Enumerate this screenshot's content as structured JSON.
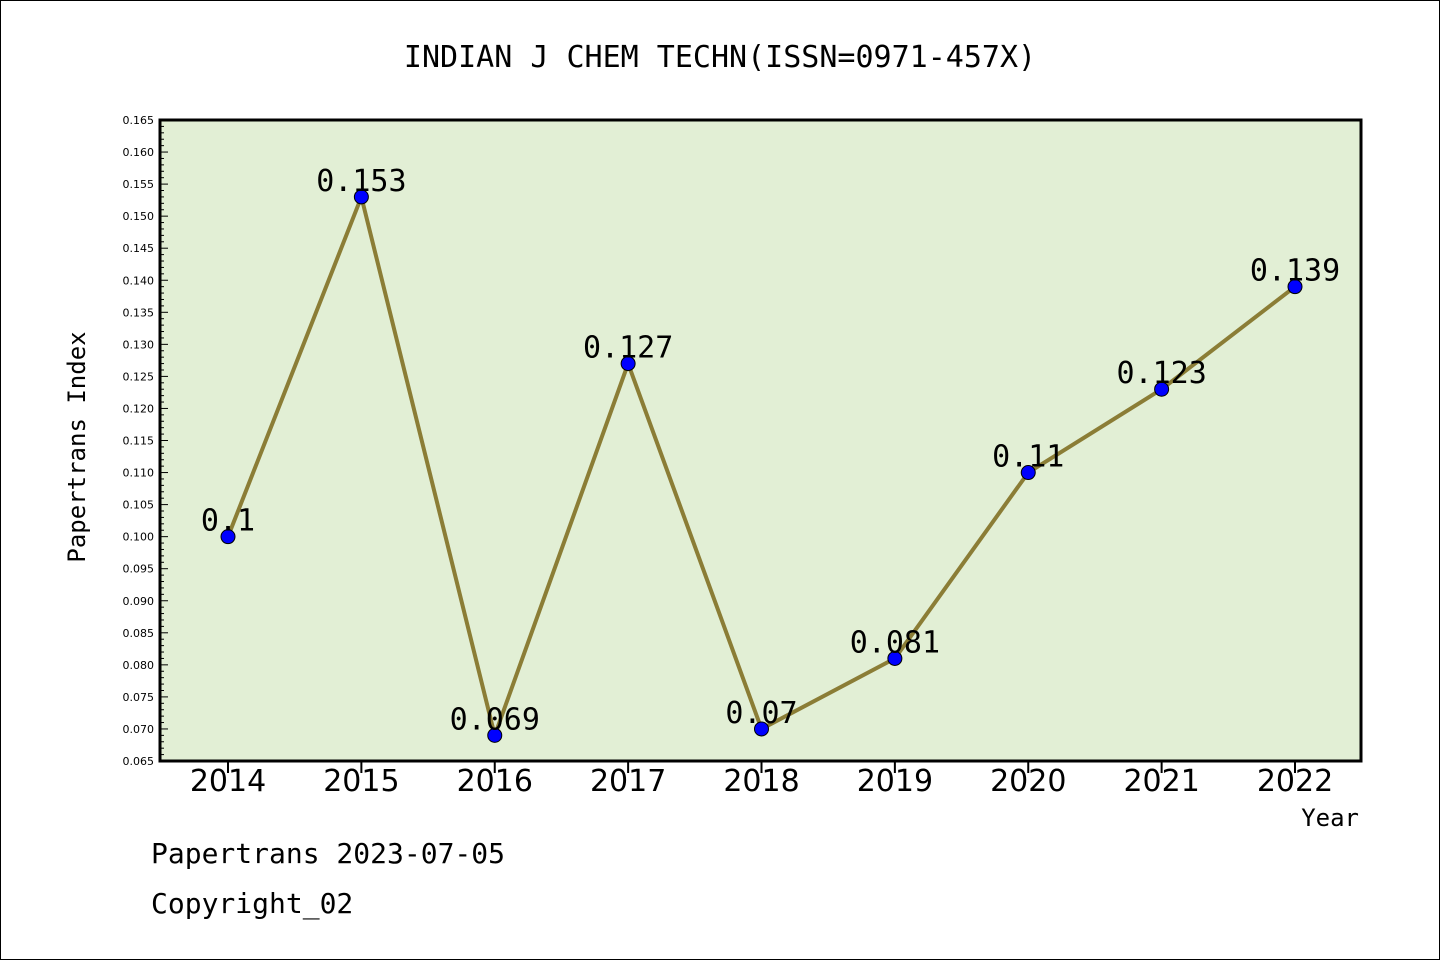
{
  "chart_data": {
    "type": "line",
    "title": "INDIAN J CHEM TECHN(ISSN=0971-457X)",
    "xlabel": "Year",
    "ylabel": "Papertrans Index",
    "categories": [
      "2014",
      "2015",
      "2016",
      "2017",
      "2018",
      "2019",
      "2020",
      "2021",
      "2022"
    ],
    "values": [
      0.1,
      0.153,
      0.069,
      0.127,
      0.07,
      0.081,
      0.11,
      0.123,
      0.139
    ],
    "data_labels": [
      "0.1",
      "0.153",
      "0.069",
      "0.127",
      "0.07",
      "0.081",
      "0.11",
      "0.123",
      "0.139"
    ],
    "ylim": [
      0.065,
      0.165
    ],
    "ytick_step": 0.005,
    "ytick_labels": [
      "0.065",
      "0.070",
      "0.075",
      "0.080",
      "0.085",
      "0.090",
      "0.095",
      "0.100",
      "0.105",
      "0.110",
      "0.115",
      "0.120",
      "0.125",
      "0.130",
      "0.135",
      "0.140",
      "0.145",
      "0.150",
      "0.155",
      "0.160",
      "0.165"
    ],
    "grid": false,
    "colors": {
      "plot_background": "#e2efd5",
      "line": "#8b7d36",
      "marker": "#0000ff"
    }
  },
  "footer": {
    "line1": "Papertrans 2023-07-05",
    "line2": "Copyright_02"
  }
}
